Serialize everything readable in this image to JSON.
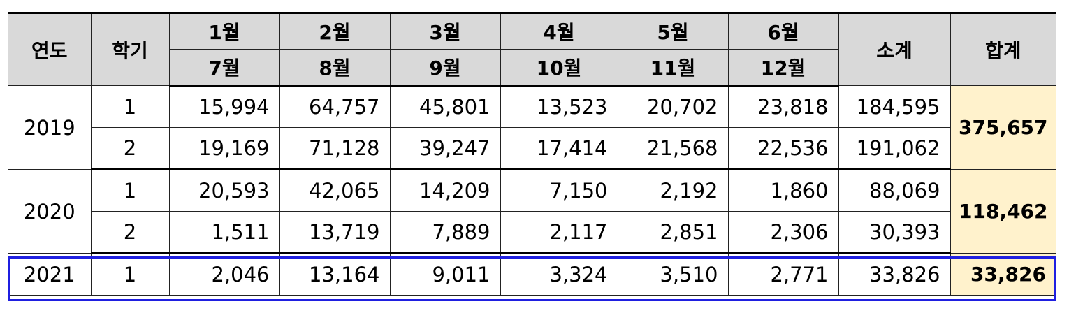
{
  "header": {
    "year_label": "연도",
    "semester_label": "학기",
    "months_top": [
      "1월",
      "2월",
      "3월",
      "4월",
      "5월",
      "6월"
    ],
    "months_bottom": [
      "7월",
      "8월",
      "9월",
      "10월",
      "11월",
      "12월"
    ],
    "subtotal_label": "소계",
    "total_label": "합계"
  },
  "rows": [
    {
      "year": "2019",
      "semester": "1",
      "values": [
        "15,994",
        "64,757",
        "45,801",
        "13,523",
        "20,702",
        "23,818"
      ],
      "subtotal": "184,595"
    },
    {
      "semester": "2",
      "values": [
        "19,169",
        "71,128",
        "39,247",
        "17,414",
        "21,568",
        "22,536"
      ],
      "subtotal": "191,062"
    },
    {
      "year": "2020",
      "semester": "1",
      "values": [
        "20,593",
        "42,065",
        "14,209",
        "7,150",
        "2,192",
        "1,860"
      ],
      "subtotal": "88,069"
    },
    {
      "semester": "2",
      "values": [
        "1,511",
        "13,719",
        "7,889",
        "2,117",
        "2,851",
        "2,306"
      ],
      "subtotal": "30,393"
    },
    {
      "year": "2021",
      "semester": "1",
      "values": [
        "2,046",
        "13,164",
        "9,011",
        "3,324",
        "3,510",
        "2,771"
      ],
      "subtotal": "33,826"
    }
  ],
  "totals": {
    "y2019": "375,657",
    "y2020": "118,462",
    "y2021": "33,826"
  },
  "colors": {
    "header_bg": "#d9d9d9",
    "total_bg": "#fff2cc",
    "highlight_border": "#1f1fe0"
  }
}
